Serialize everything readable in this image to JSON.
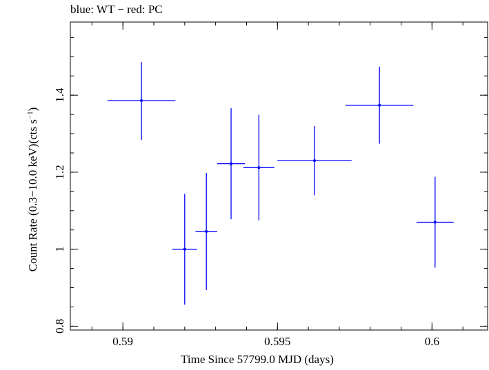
{
  "chart_data": {
    "type": "scatter",
    "title": "blue: WT − red: PC",
    "xlabel": "Time Since 57799.0 MJD (days)",
    "ylabel_main": "Count Rate (0.3−10.0 keV)(cts s",
    "ylabel_sup": "−1",
    "ylabel_close": ")",
    "xlim": [
      0.5883,
      0.6018
    ],
    "ylim": [
      0.79,
      1.59
    ],
    "grid": false,
    "x_ticks": [
      0.59,
      0.595,
      0.6
    ],
    "x_tick_labels": [
      "0.59",
      "0.595",
      "0.6"
    ],
    "y_ticks": [
      0.8,
      1.0,
      1.2,
      1.4
    ],
    "y_tick_labels": [
      "0.8",
      "1",
      "1.2",
      "1.4"
    ],
    "x_minor_step": 0.001,
    "y_minor_step": 0.05,
    "colors": {
      "series": "#0000ff",
      "axis": "#000000"
    },
    "series": [
      {
        "color": "#0000ff",
        "points": [
          {
            "x": 0.5906,
            "y": 1.386,
            "xerr_lo": 0.0011,
            "xerr_hi": 0.0011,
            "y_lo": 1.284,
            "y_hi": 1.486
          },
          {
            "x": 0.592,
            "y": 1.0,
            "xerr_lo": 0.0004,
            "xerr_hi": 0.0004,
            "y_lo": 0.856,
            "y_hi": 1.144
          },
          {
            "x": 0.5927,
            "y": 1.046,
            "xerr_lo": 0.00035,
            "xerr_hi": 0.00035,
            "y_lo": 0.894,
            "y_hi": 1.198
          },
          {
            "x": 0.5935,
            "y": 1.222,
            "xerr_lo": 0.00045,
            "xerr_hi": 0.00045,
            "y_lo": 1.078,
            "y_hi": 1.366
          },
          {
            "x": 0.5944,
            "y": 1.212,
            "xerr_lo": 0.0005,
            "xerr_hi": 0.0005,
            "y_lo": 1.075,
            "y_hi": 1.349
          },
          {
            "x": 0.5962,
            "y": 1.23,
            "xerr_lo": 0.0012,
            "xerr_hi": 0.0012,
            "y_lo": 1.14,
            "y_hi": 1.32
          },
          {
            "x": 0.5983,
            "y": 1.374,
            "xerr_lo": 0.0011,
            "xerr_hi": 0.0011,
            "y_lo": 1.274,
            "y_hi": 1.474
          },
          {
            "x": 0.6001,
            "y": 1.07,
            "xerr_lo": 0.0006,
            "xerr_hi": 0.0006,
            "y_lo": 0.952,
            "y_hi": 1.188
          }
        ]
      }
    ]
  }
}
